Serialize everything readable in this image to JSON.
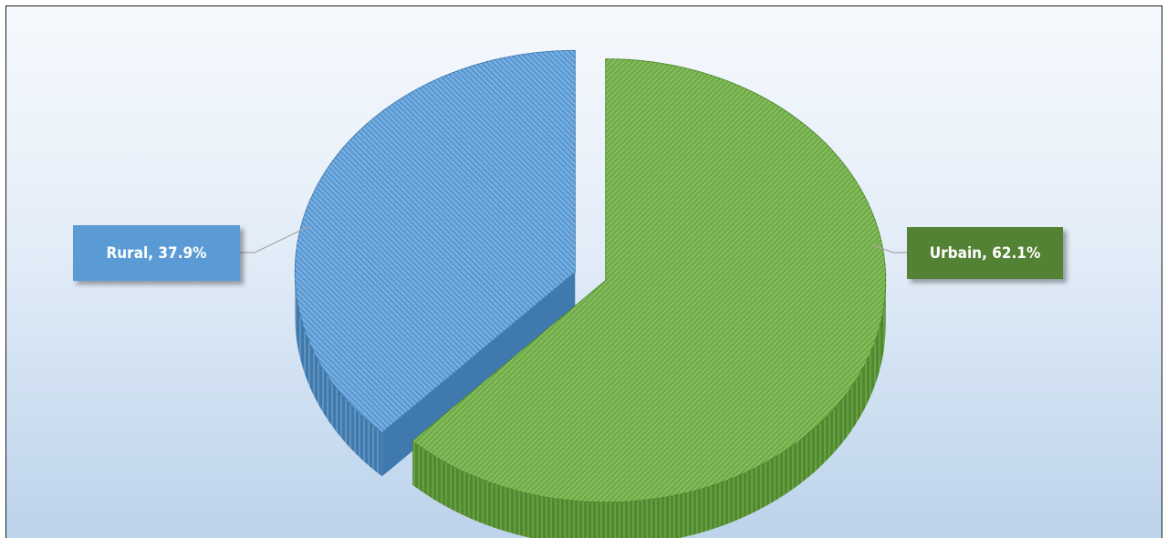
{
  "chart_data": {
    "type": "pie",
    "style": "3d-exploded",
    "title": "",
    "slices": [
      {
        "label": "Rural",
        "value": 37.9,
        "color": "#5b9bd5",
        "side_color": "#3f79ad",
        "box_color": "#5b9bd5"
      },
      {
        "label": "Urbain",
        "value": 62.1,
        "color": "#70ad47",
        "side_color": "#4f8a2c",
        "box_color": "#548235"
      }
    ],
    "data_labels": [
      {
        "text": "Rural, 37.9%"
      },
      {
        "text": "Urbain, 62.1%"
      }
    ]
  }
}
